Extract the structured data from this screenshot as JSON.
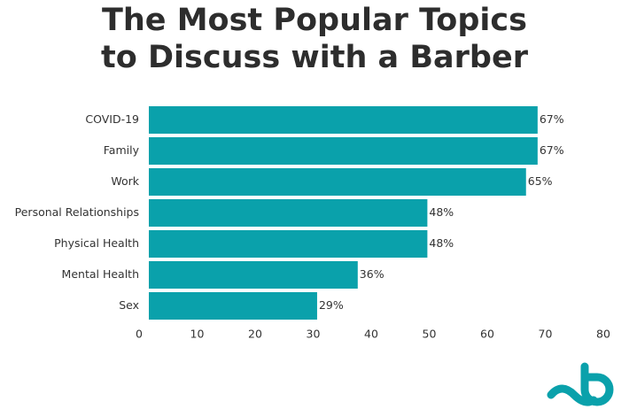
{
  "chart_data": {
    "type": "bar",
    "orientation": "horizontal",
    "title": "The Most Popular Topics to Discuss with a Barber",
    "categories": [
      "COVID-19",
      "Family",
      "Work",
      "Personal Relationships",
      "Physical Health",
      "Mental Health",
      "Sex"
    ],
    "values": [
      67,
      67,
      65,
      48,
      48,
      36,
      29
    ],
    "value_labels": [
      "67%",
      "67%",
      "65%",
      "48%",
      "48%",
      "36%",
      "29%"
    ],
    "color": "#0aa1ab",
    "xlim": [
      0,
      80
    ],
    "xticks": [
      0,
      10,
      20,
      30,
      40,
      50,
      60,
      70,
      80
    ],
    "grid": false
  }
}
